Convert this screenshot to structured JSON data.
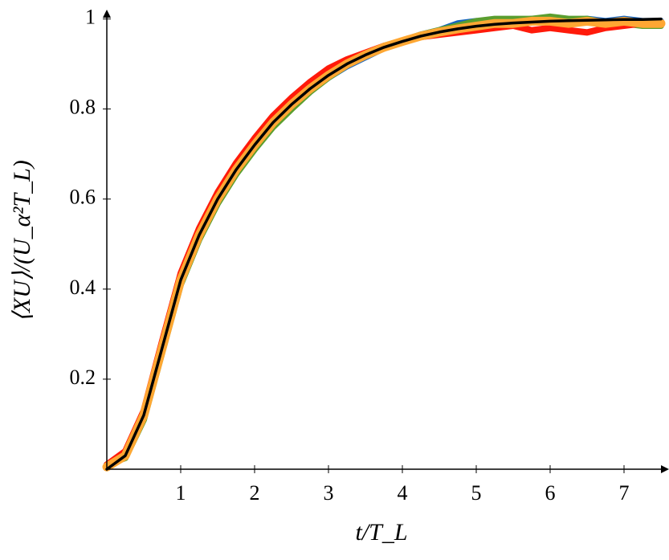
{
  "chart_data": {
    "type": "line",
    "xlabel": "t/T_L",
    "ylabel": "⟨XU⟩/(U_α²T_L)",
    "x": [
      0,
      0.25,
      0.5,
      0.75,
      1,
      1.25,
      1.5,
      1.75,
      2,
      2.25,
      2.5,
      2.75,
      3,
      3.25,
      3.5,
      3.75,
      4,
      4.25,
      4.5,
      4.75,
      5,
      5.25,
      5.5,
      5.75,
      6,
      6.25,
      6.5,
      6.75,
      7,
      7.25,
      7.5
    ],
    "series": [
      {
        "color": "#1565c0",
        "width": 8,
        "values": [
          0.01,
          0.03,
          0.115,
          0.265,
          0.415,
          0.515,
          0.595,
          0.66,
          0.715,
          0.765,
          0.805,
          0.84,
          0.87,
          0.895,
          0.915,
          0.935,
          0.95,
          0.965,
          0.975,
          0.99,
          0.995,
          0.99,
          0.995,
          1.0,
          1.0,
          0.995,
          1.0,
          0.995,
          1.0,
          0.995,
          0.995
        ]
      },
      {
        "color": "#5a9e2f",
        "width": 8,
        "values": [
          0.01,
          0.025,
          0.11,
          0.26,
          0.41,
          0.51,
          0.59,
          0.655,
          0.71,
          0.76,
          0.8,
          0.838,
          0.87,
          0.897,
          0.92,
          0.94,
          0.952,
          0.965,
          0.975,
          0.985,
          0.995,
          1.0,
          1.0,
          1.0,
          1.005,
          1.0,
          1.0,
          0.99,
          0.99,
          0.985,
          0.985
        ]
      },
      {
        "color": "#ff1a0a",
        "width": 8,
        "values": [
          0.01,
          0.04,
          0.13,
          0.285,
          0.435,
          0.535,
          0.615,
          0.68,
          0.735,
          0.785,
          0.825,
          0.86,
          0.89,
          0.91,
          0.925,
          0.94,
          0.95,
          0.96,
          0.965,
          0.97,
          0.975,
          0.98,
          0.985,
          0.975,
          0.98,
          0.975,
          0.97,
          0.98,
          0.985,
          0.99,
          0.99
        ]
      },
      {
        "color": "#ffa733",
        "width": 11,
        "values": [
          0.005,
          0.03,
          0.12,
          0.27,
          0.42,
          0.52,
          0.6,
          0.665,
          0.72,
          0.77,
          0.81,
          0.845,
          0.875,
          0.9,
          0.92,
          0.937,
          0.95,
          0.962,
          0.971,
          0.978,
          0.984,
          0.99,
          0.99,
          0.995,
          0.995,
          0.99,
          0.995,
          0.99,
          0.995,
          0.99,
          0.99
        ]
      },
      {
        "color": "#000000",
        "width": 3.5,
        "values": [
          0,
          0.03,
          0.12,
          0.27,
          0.42,
          0.52,
          0.6,
          0.665,
          0.72,
          0.77,
          0.81,
          0.845,
          0.875,
          0.9,
          0.92,
          0.937,
          0.95,
          0.962,
          0.971,
          0.978,
          0.984,
          0.988,
          0.991,
          0.993,
          0.995,
          0.996,
          0.997,
          0.998,
          0.999,
          0.999,
          1
        ]
      }
    ],
    "xlim": [
      0,
      7.5
    ],
    "ylim": [
      0,
      1.01
    ],
    "xticks": [
      1,
      2,
      3,
      4,
      5,
      6,
      7
    ],
    "yticks": [
      0.2,
      0.4,
      0.6,
      0.8,
      1
    ]
  }
}
